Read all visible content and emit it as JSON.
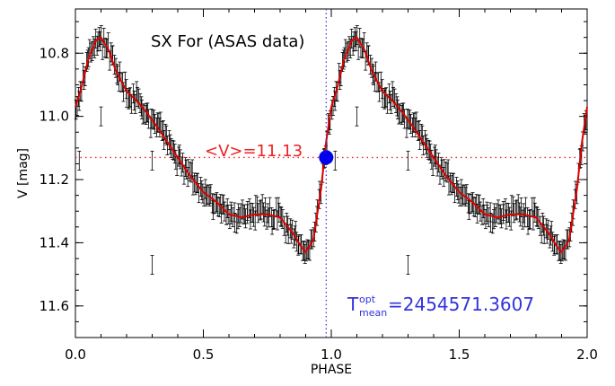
{
  "chart_data": {
    "type": "scatter",
    "title": "SX For (ASAS data)",
    "xlabel": "PHASE",
    "ylabel": "V [mag]",
    "xlim": [
      0.0,
      2.0
    ],
    "ylim": [
      11.7,
      10.66
    ],
    "y_inverted": true,
    "xticks": [
      "0.0",
      "0.5",
      "1.0",
      "1.5",
      "2.0"
    ],
    "yticks": [
      "10.8",
      "11.0",
      "11.2",
      "11.4",
      "11.6"
    ],
    "mean_annotation": "<V>=11.13",
    "mean_value": 11.13,
    "phase_marker": 0.98,
    "epoch": {
      "symbol": "T",
      "sup": "opt",
      "sub": "mean",
      "value": "=2454571.3607"
    },
    "fit_curve": {
      "x": [
        0.0,
        0.02,
        0.05,
        0.08,
        0.1,
        0.13,
        0.16,
        0.2,
        0.25,
        0.3,
        0.35,
        0.4,
        0.45,
        0.5,
        0.55,
        0.6,
        0.65,
        0.7,
        0.75,
        0.8,
        0.85,
        0.88,
        0.9,
        0.93,
        0.96,
        0.98,
        1.0
      ],
      "y": [
        10.97,
        10.92,
        10.82,
        10.76,
        10.75,
        10.79,
        10.86,
        10.92,
        10.96,
        11.01,
        11.07,
        11.13,
        11.19,
        11.24,
        11.27,
        11.31,
        11.32,
        11.31,
        11.31,
        11.32,
        11.37,
        11.41,
        11.43,
        11.39,
        11.23,
        11.08,
        10.97
      ]
    },
    "mean_point": {
      "phase": 0.98,
      "v": 11.13
    },
    "outliers": [
      {
        "phase": 0.1,
        "v": 11.0
      },
      {
        "phase": 0.3,
        "v": 11.14
      },
      {
        "phase": 0.3,
        "v": 11.47
      },
      {
        "phase": 0.015,
        "v": 11.14
      }
    ],
    "observation_count": 220,
    "error_bar_mag": 0.03,
    "colors": {
      "data": "#000000",
      "fit": "#dd0000",
      "mean_line": "#ee2222",
      "marker": "#0000ee",
      "phase_line": "#3333cc",
      "epoch_text": "#3333dd"
    }
  }
}
